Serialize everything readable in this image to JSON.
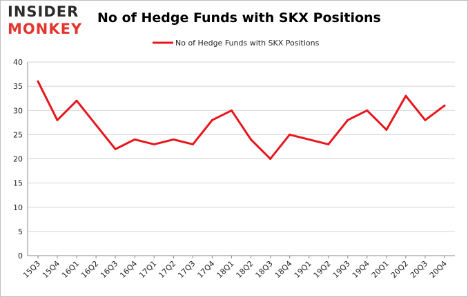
{
  "logo": {
    "line1": "INSIDER",
    "line2": "MONKEY",
    "color_dark": "#2b2b2b",
    "color_accent": "#e3362c"
  },
  "chart_data": {
    "type": "line",
    "title": "No of Hedge Funds with SKX Positions",
    "xlabel": "",
    "ylabel": "",
    "categories": [
      "15Q3",
      "15Q4",
      "16Q1",
      "16Q2",
      "16Q3",
      "16Q4",
      "17Q1",
      "17Q2",
      "17Q3",
      "17Q4",
      "18Q1",
      "18Q2",
      "18Q3",
      "18Q4",
      "19Q1",
      "19Q2",
      "19Q3",
      "19Q4",
      "20Q1",
      "20Q2",
      "20Q3",
      "20Q4"
    ],
    "series": [
      {
        "name": "No of Hedge Funds with SKX Positions",
        "color": "#e8151b",
        "values": [
          36,
          28,
          32,
          27,
          22,
          24,
          23,
          24,
          23,
          28,
          30,
          24,
          20,
          25,
          24,
          23,
          28,
          30,
          26,
          33,
          28,
          31
        ]
      }
    ],
    "ylim": [
      0,
      40
    ],
    "yticks": [
      0,
      5,
      10,
      15,
      20,
      25,
      30,
      35,
      40
    ],
    "grid": true,
    "legend": "top-center"
  }
}
